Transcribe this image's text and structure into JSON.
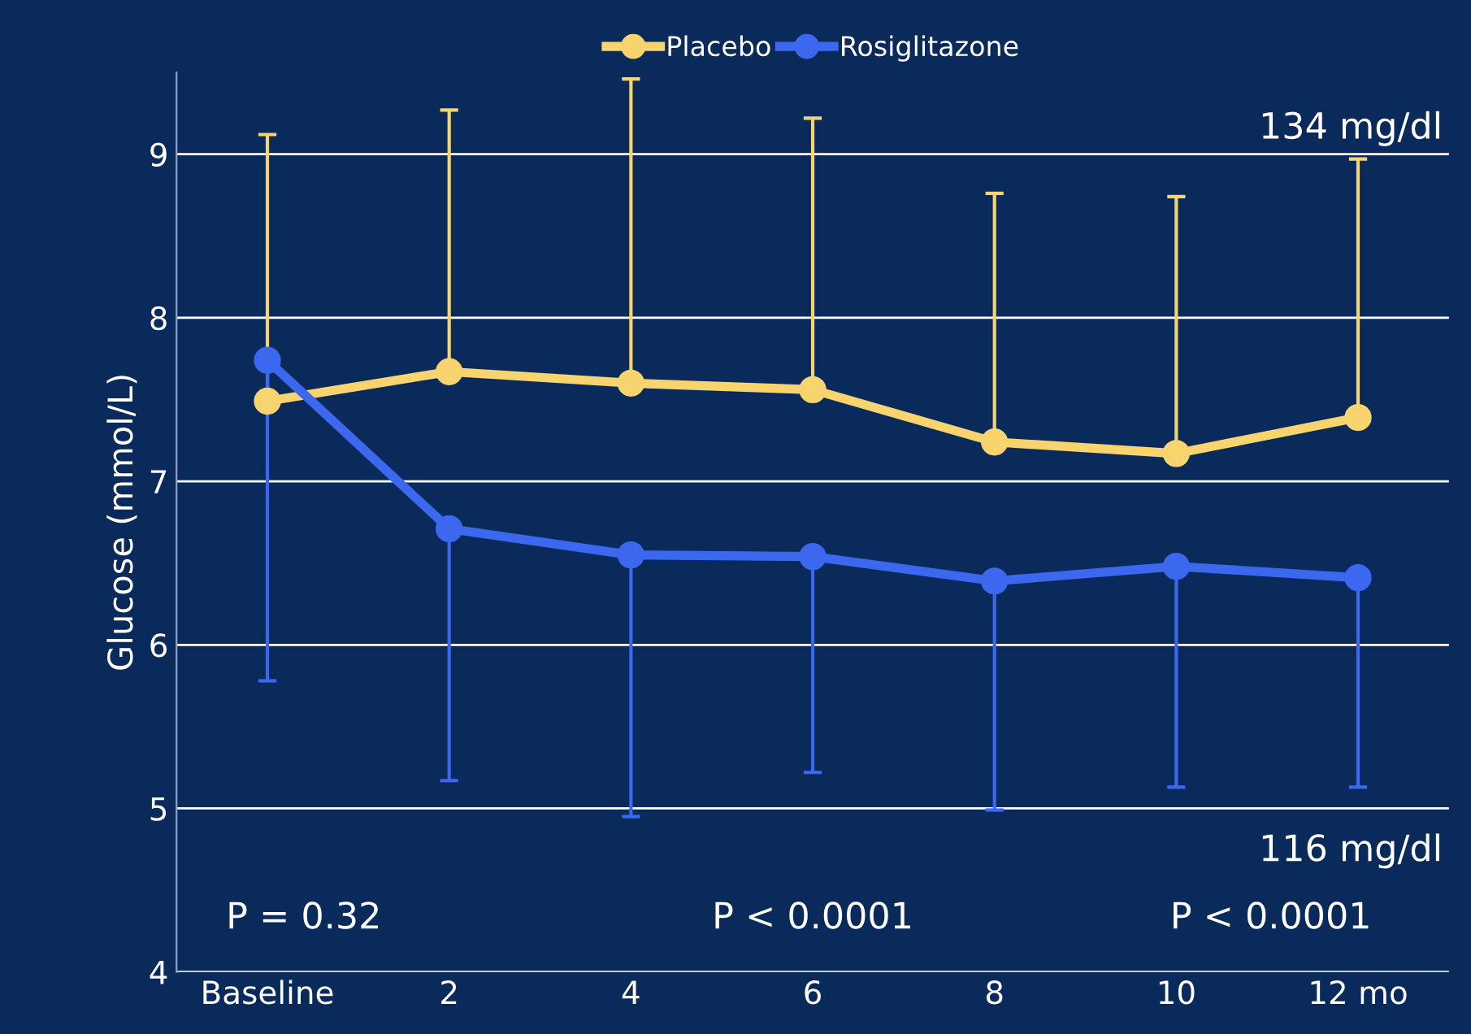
{
  "chart_data": {
    "type": "line",
    "ylabel": "Glucose (mmol/L)",
    "categories": [
      "Baseline",
      "2",
      "4",
      "6",
      "8",
      "10",
      "12 mo"
    ],
    "series": [
      {
        "name": "Placebo",
        "color": "#f8d46e",
        "values": [
          7.49,
          7.67,
          7.6,
          7.56,
          7.24,
          7.17,
          7.39
        ],
        "errors": [
          [
            7.49,
            9.12
          ],
          [
            7.67,
            9.27
          ],
          [
            7.6,
            9.46
          ],
          [
            7.56,
            9.22
          ],
          [
            7.24,
            8.76
          ],
          [
            7.17,
            8.74
          ],
          [
            7.39,
            8.97
          ]
        ]
      },
      {
        "name": "Rosiglitazone",
        "color": "#3c68f0",
        "values": [
          7.74,
          6.71,
          6.55,
          6.54,
          6.39,
          6.48,
          6.41
        ],
        "errors": [
          [
            5.78,
            7.74
          ],
          [
            5.17,
            6.71
          ],
          [
            4.95,
            6.55
          ],
          [
            5.22,
            6.54
          ],
          [
            4.99,
            6.39
          ],
          [
            5.13,
            6.48
          ],
          [
            5.13,
            6.41
          ]
        ]
      }
    ],
    "ylim": [
      4,
      9.5
    ],
    "yticks": [
      4,
      5,
      6,
      7,
      8,
      9
    ],
    "grid": "y",
    "legend": "top",
    "marker": "circle",
    "line_style": "solid",
    "annotations": [
      "134 mg/dl",
      "116 mg/dl",
      "P = 0.32",
      "P < 0.0001",
      "P < 0.0001"
    ]
  }
}
